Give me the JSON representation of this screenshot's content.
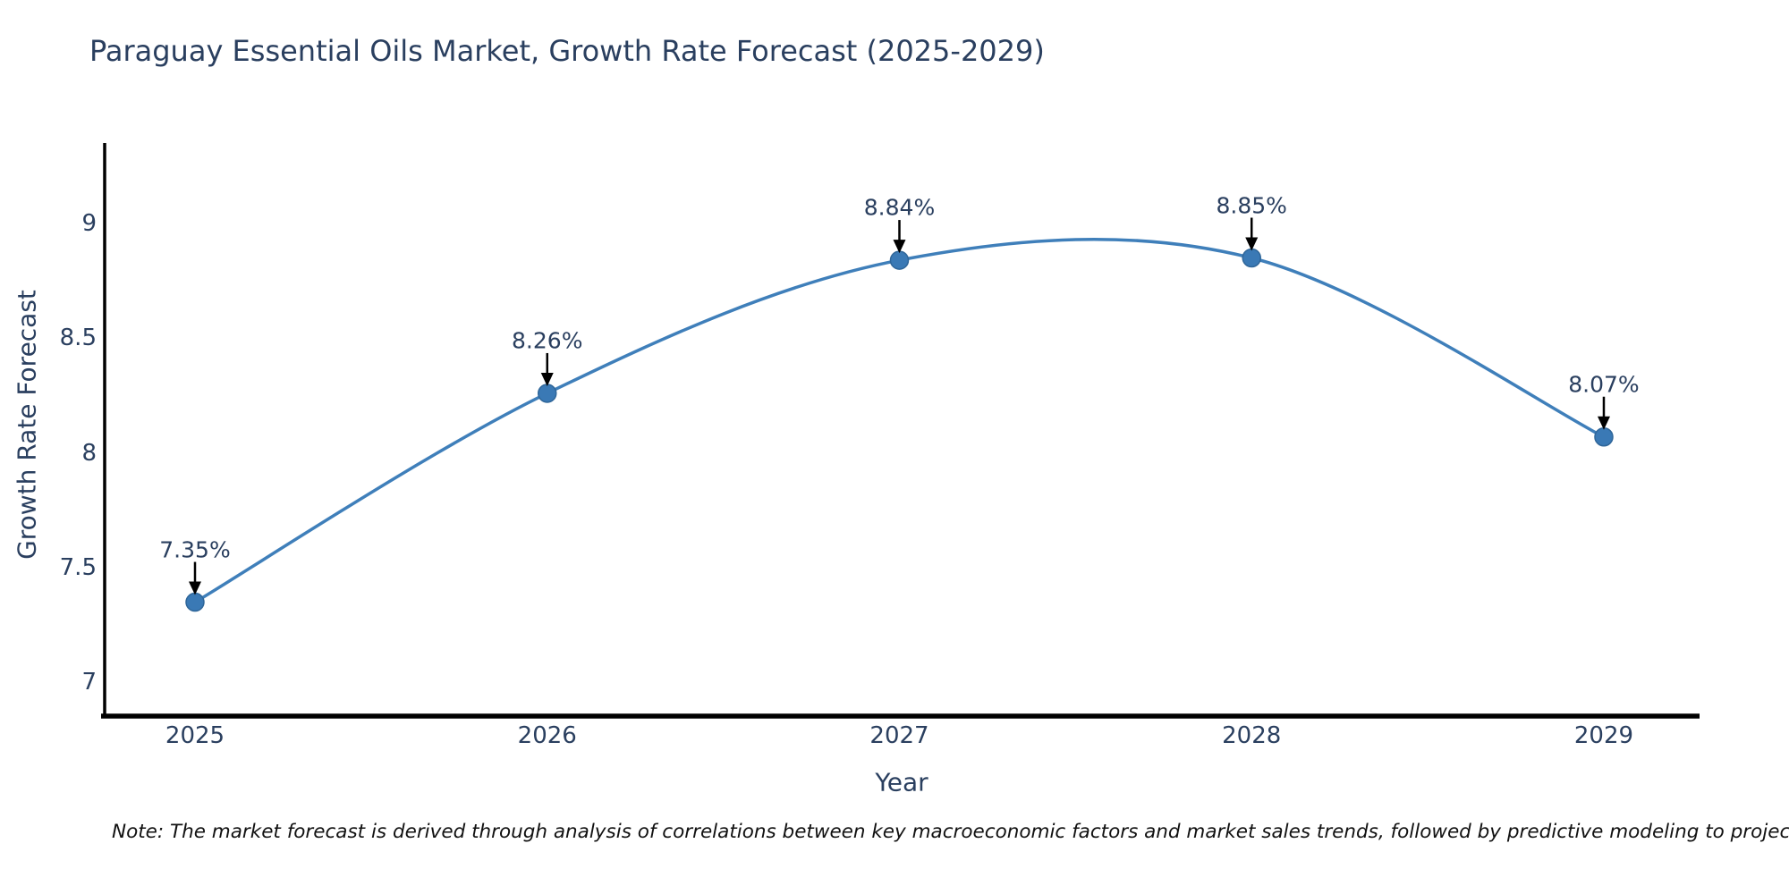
{
  "footnote": {
    "text": "Note: The market forecast is derived through analysis of correlations between key macroeconomic factors and market sales trends, followed by predictive modeling to project future sales"
  },
  "chart_data": {
    "type": "line",
    "title": "Paraguay Essential Oils Market, Growth Rate Forecast (2025-2029)",
    "xlabel": "Year",
    "ylabel": "Growth Rate Forecast",
    "x": [
      2025,
      2026,
      2027,
      2028,
      2029
    ],
    "series": [
      {
        "name": "Growth Rate Forecast",
        "values": [
          7.35,
          8.26,
          8.84,
          8.85,
          8.07
        ],
        "point_labels": [
          "7.35%",
          "8.26%",
          "8.84%",
          "8.85%",
          "8.07%"
        ]
      }
    ],
    "x_tick_labels": [
      "2025",
      "2026",
      "2027",
      "2028",
      "2029"
    ],
    "y_ticks": [
      9,
      8.5,
      8,
      7.5,
      7
    ],
    "y_tick_labels": [
      "9",
      "8.5",
      "8",
      "7.5",
      "7"
    ],
    "xlim": [
      2024.7435,
      2029.2718
    ],
    "ylim": [
      6.8535,
      9.3506
    ],
    "grid": false,
    "legend": false,
    "line_shape": "spline",
    "annotation_style": "value label above each point with black down-arrow",
    "colors": {
      "line": "#3f7fba",
      "marker": "#3a79b5",
      "marker_edge": "#2f6699",
      "axis": "#000000",
      "text": "#2a3f5f",
      "arrow": "#000000",
      "background": "#ffffff"
    }
  }
}
